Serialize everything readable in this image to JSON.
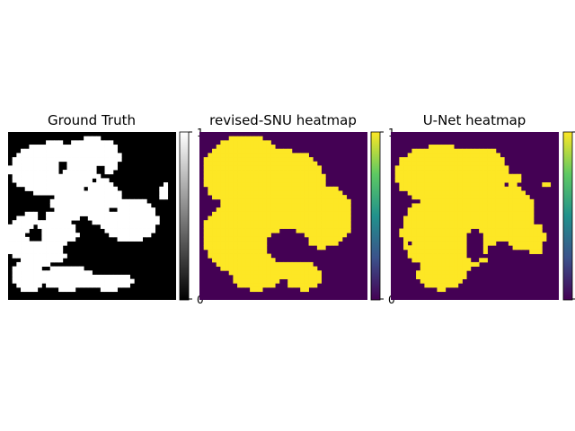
{
  "chart_data": [
    {
      "type": "heatmap",
      "title": "Ground Truth",
      "colormap": "gray",
      "colorbar": {
        "ticks": [
          "0",
          "1"
        ],
        "range": [
          0,
          1
        ]
      },
      "background_value": 0,
      "foreground_value": 1,
      "blobs": [
        {
          "cx": 0.27,
          "cy": 0.22,
          "rx": 0.26,
          "ry": 0.16
        },
        {
          "cx": 0.5,
          "cy": 0.15,
          "rx": 0.17,
          "ry": 0.12
        },
        {
          "cx": 0.56,
          "cy": 0.42,
          "rx": 0.12,
          "ry": 0.14
        },
        {
          "cx": 0.72,
          "cy": 0.52,
          "rx": 0.17,
          "ry": 0.13
        },
        {
          "cx": 0.38,
          "cy": 0.42,
          "rx": 0.12,
          "ry": 0.1
        },
        {
          "cx": 0.2,
          "cy": 0.63,
          "rx": 0.22,
          "ry": 0.16
        },
        {
          "cx": 0.12,
          "cy": 0.85,
          "rx": 0.09,
          "ry": 0.11
        },
        {
          "cx": 0.35,
          "cy": 0.87,
          "rx": 0.17,
          "ry": 0.07
        },
        {
          "cx": 0.6,
          "cy": 0.89,
          "rx": 0.14,
          "ry": 0.05
        },
        {
          "cx": 0.93,
          "cy": 0.36,
          "rx": 0.025,
          "ry": 0.05
        }
      ],
      "holes": [
        {
          "cx": 0.16,
          "cy": 0.61,
          "rx": 0.05,
          "ry": 0.05
        },
        {
          "cx": 0.32,
          "cy": 0.21,
          "rx": 0.03,
          "ry": 0.03
        },
        {
          "cx": 0.55,
          "cy": 0.22,
          "rx": 0.025,
          "ry": 0.025
        },
        {
          "cx": 0.62,
          "cy": 0.46,
          "rx": 0.02,
          "ry": 0.02
        },
        {
          "cx": 0.46,
          "cy": 0.7,
          "rx": 0.14,
          "ry": 0.07
        },
        {
          "cx": 0.2,
          "cy": 0.49,
          "rx": 0.035,
          "ry": 0.025
        }
      ]
    },
    {
      "type": "heatmap",
      "title": "revised-SNU heatmap",
      "colormap": "viridis",
      "colorbar": {
        "ticks": [
          "0",
          "1"
        ],
        "range": [
          0,
          1
        ]
      },
      "background_value": 0,
      "foreground_value": 1,
      "blobs": [
        {
          "cx": 0.27,
          "cy": 0.24,
          "rx": 0.25,
          "ry": 0.22
        },
        {
          "cx": 0.52,
          "cy": 0.3,
          "rx": 0.23,
          "ry": 0.19
        },
        {
          "cx": 0.72,
          "cy": 0.5,
          "rx": 0.19,
          "ry": 0.19
        },
        {
          "cx": 0.3,
          "cy": 0.62,
          "rx": 0.28,
          "ry": 0.24
        },
        {
          "cx": 0.33,
          "cy": 0.87,
          "rx": 0.14,
          "ry": 0.07
        },
        {
          "cx": 0.62,
          "cy": 0.86,
          "rx": 0.11,
          "ry": 0.08
        },
        {
          "cx": 0.5,
          "cy": 0.82,
          "rx": 0.1,
          "ry": 0.05
        }
      ],
      "holes": [
        {
          "cx": 0.52,
          "cy": 0.68,
          "rx": 0.13,
          "ry": 0.1
        }
      ]
    },
    {
      "type": "heatmap",
      "title": "U-Net heatmap",
      "colormap": "viridis",
      "colorbar": {
        "ticks": [
          "0",
          "1"
        ],
        "range": [
          0,
          1
        ]
      },
      "background_value": 0,
      "foreground_value": 1,
      "blobs": [
        {
          "cx": 0.3,
          "cy": 0.25,
          "rx": 0.28,
          "ry": 0.17
        },
        {
          "cx": 0.52,
          "cy": 0.22,
          "rx": 0.17,
          "ry": 0.13
        },
        {
          "cx": 0.35,
          "cy": 0.6,
          "rx": 0.29,
          "ry": 0.24
        },
        {
          "cx": 0.65,
          "cy": 0.48,
          "rx": 0.21,
          "ry": 0.17
        },
        {
          "cx": 0.8,
          "cy": 0.62,
          "rx": 0.12,
          "ry": 0.09
        },
        {
          "cx": 0.3,
          "cy": 0.85,
          "rx": 0.15,
          "ry": 0.09
        },
        {
          "cx": 0.72,
          "cy": 0.28,
          "rx": 0.05,
          "ry": 0.04
        },
        {
          "cx": 0.86,
          "cy": 0.68,
          "rx": 0.05,
          "ry": 0.05
        },
        {
          "cx": 0.93,
          "cy": 0.31,
          "rx": 0.025,
          "ry": 0.02
        }
      ],
      "holes": [
        {
          "cx": 0.5,
          "cy": 0.68,
          "rx": 0.06,
          "ry": 0.1
        },
        {
          "cx": 0.64,
          "cy": 0.73,
          "rx": 0.08,
          "ry": 0.07
        },
        {
          "cx": 0.12,
          "cy": 0.66,
          "rx": 0.015,
          "ry": 0.015
        },
        {
          "cx": 0.78,
          "cy": 0.71,
          "rx": 0.02,
          "ry": 0.02
        }
      ]
    }
  ]
}
